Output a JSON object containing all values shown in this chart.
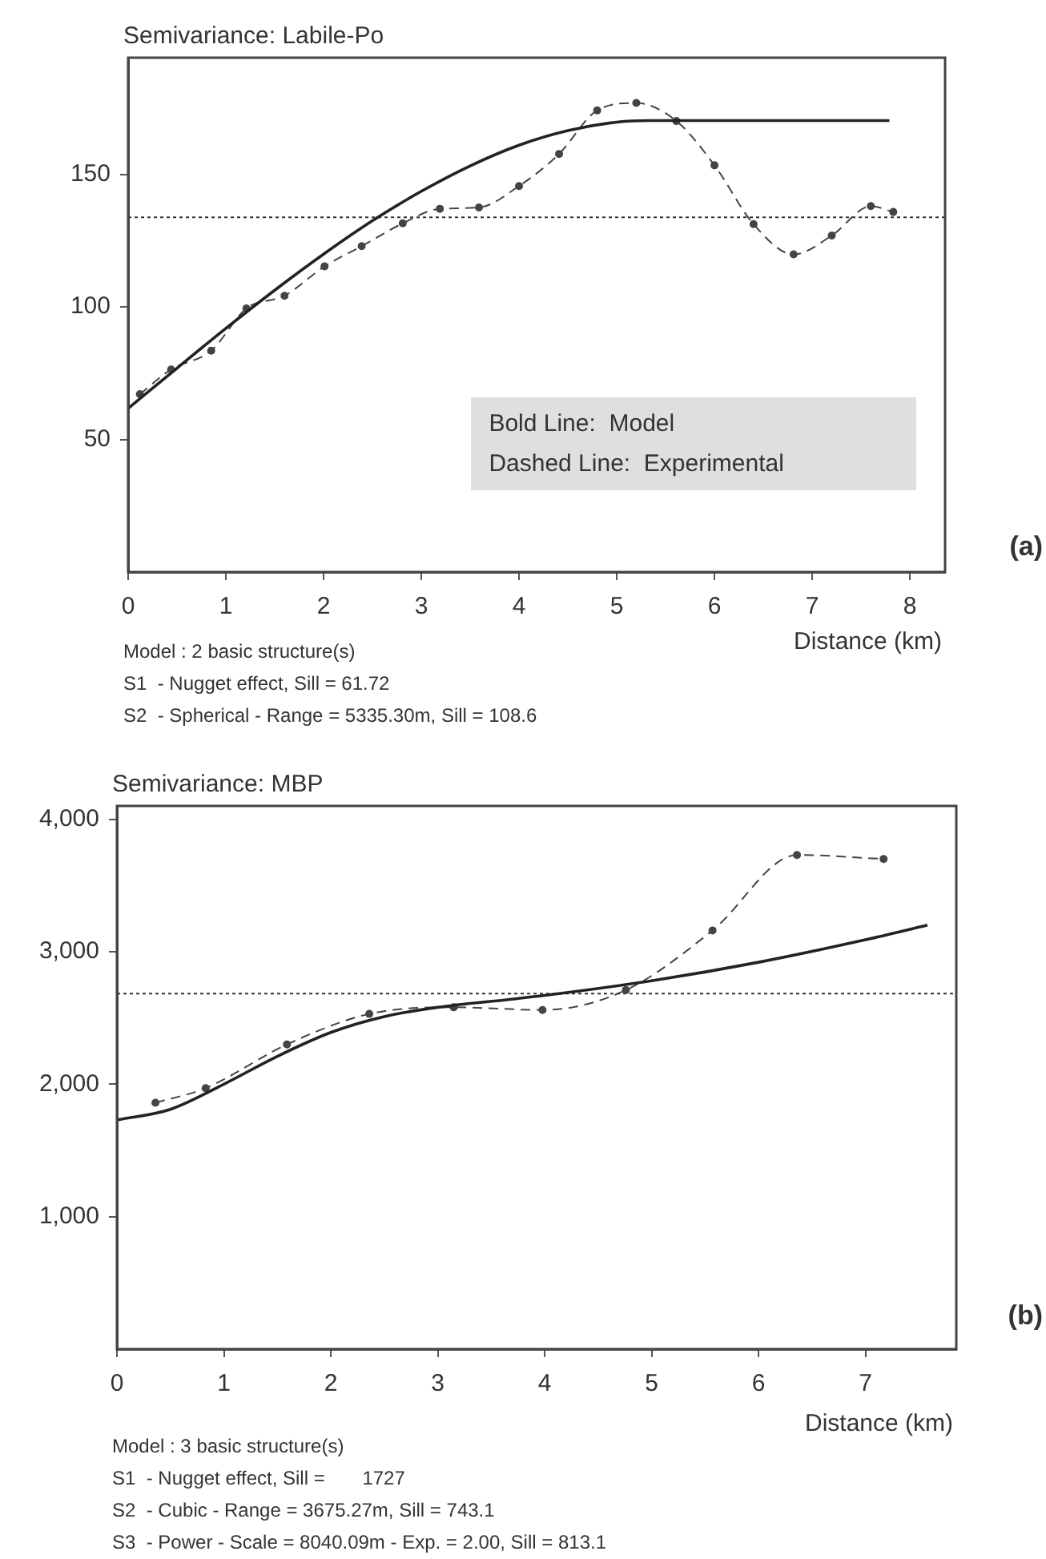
{
  "chart_data": [
    {
      "type": "line",
      "title": "Semivariance: Labile-Po",
      "xlabel": "Distance (km)",
      "annotations": [
        "(a)",
        "Model : 2 basic structure(s)\nS1  - Nugget effect, Sill = 61.72\nS2  - Spherical - Range = 5335.30m, Sill = 108.6",
        "Bold Line:  Model",
        "Dashed Line:  Experimental"
      ],
      "xlim": [
        0,
        8.36
      ],
      "ylim": [
        0,
        194
      ],
      "xticks": [
        0,
        1,
        2,
        3,
        4,
        5,
        6,
        7,
        8
      ],
      "yticks": [
        50,
        100,
        150
      ],
      "grid": false,
      "ref_lines": [
        {
          "axis": "y",
          "value": 133.8,
          "line_style": "dotted",
          "color": "#333333"
        }
      ],
      "series": [
        {
          "type": "line",
          "color": "#222222",
          "line_style": "solid",
          "marker": "none",
          "x": [
            0,
            0.5,
            1,
            1.5,
            2,
            2.5,
            3,
            3.5,
            4,
            4.5,
            5,
            5.33,
            6,
            7,
            7.79
          ],
          "values": [
            61.7,
            76.9,
            91.9,
            106.3,
            119.9,
            132.5,
            143.6,
            153.2,
            161,
            166.5,
            169.7,
            170.3,
            170.3,
            170.3,
            170.3
          ]
        },
        {
          "type": "line",
          "color": "#444444",
          "line_style": "dashed",
          "marker": "circle",
          "x": [
            0.12,
            0.44,
            0.85,
            1.21,
            1.6,
            2.01,
            2.39,
            2.81,
            3.19,
            3.59,
            4.0,
            4.41,
            4.8,
            5.2,
            5.61,
            6.0,
            6.4,
            6.81,
            7.2,
            7.6,
            7.83
          ],
          "values": [
            67.1,
            76.4,
            83.5,
            99.4,
            104.2,
            115.3,
            122.9,
            131.5,
            137,
            137.5,
            145.6,
            157.7,
            174.1,
            176.9,
            170.1,
            153.4,
            131.2,
            119.8,
            126.9,
            138,
            135.8
          ]
        }
      ]
    },
    {
      "type": "line",
      "title": "Semivariance: MBP",
      "xlabel": "Distance (km)",
      "annotations": [
        "(b)",
        "Model : 3 basic structure(s)\nS1  - Nugget effect, Sill =       1727\nS2  - Cubic - Range = 3675.27m, Sill = 743.1\nS3  - Power - Scale = 8040.09m - Exp. = 2.00, Sill = 813.1"
      ],
      "xlim": [
        0,
        7.85
      ],
      "ylim": [
        0,
        4100
      ],
      "xticks": [
        0,
        1,
        2,
        3,
        4,
        5,
        6,
        7
      ],
      "yticks": [
        {
          "value": 1000,
          "label": "1,000"
        },
        {
          "value": 2000,
          "label": "2,000"
        },
        {
          "value": 3000,
          "label": "3,000"
        },
        {
          "value": 4000,
          "label": "4,000"
        }
      ],
      "grid": false,
      "ref_lines": [
        {
          "axis": "y",
          "value": 2683,
          "line_style": "dotted",
          "color": "#333333"
        }
      ],
      "series": [
        {
          "type": "line",
          "color": "#222222",
          "line_style": "solid",
          "marker": "none",
          "x": [
            0,
            0.5,
            1,
            1.5,
            2,
            2.5,
            3,
            3.675,
            4,
            5,
            6,
            7,
            7.58
          ],
          "values": [
            1730,
            1810,
            2000,
            2210,
            2390,
            2510,
            2580,
            2640,
            2670,
            2780,
            2920,
            3090,
            3200
          ]
        },
        {
          "type": "line",
          "color": "#444444",
          "line_style": "dashed",
          "marker": "circle",
          "x": [
            0.36,
            0.83,
            1.59,
            2.36,
            3.15,
            3.98,
            4.76,
            5.57,
            6.36,
            7.17
          ],
          "values": [
            1860,
            1970,
            2300,
            2530,
            2580,
            2560,
            2710,
            3160,
            3730,
            3700
          ]
        }
      ]
    }
  ]
}
